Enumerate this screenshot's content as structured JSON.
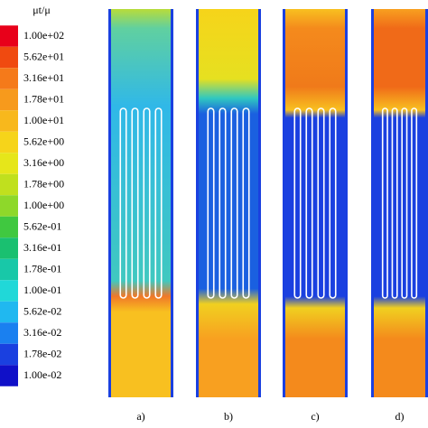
{
  "colorbar": {
    "title": "μt/μ",
    "labels": [
      "1.00e+02",
      "5.62e+01",
      "3.16e+01",
      "1.78e+01",
      "1.00e+01",
      "5.62e+00",
      "3.16e+00",
      "1.78e+00",
      "1.00e+00",
      "5.62e-01",
      "3.16e-01",
      "1.78e-01",
      "1.00e-01",
      "5.62e-02",
      "3.16e-02",
      "1.78e-02",
      "1.00e-02"
    ]
  },
  "panels": [
    {
      "label": "a)"
    },
    {
      "label": "b)"
    },
    {
      "label": "c)"
    },
    {
      "label": "d)"
    }
  ]
}
